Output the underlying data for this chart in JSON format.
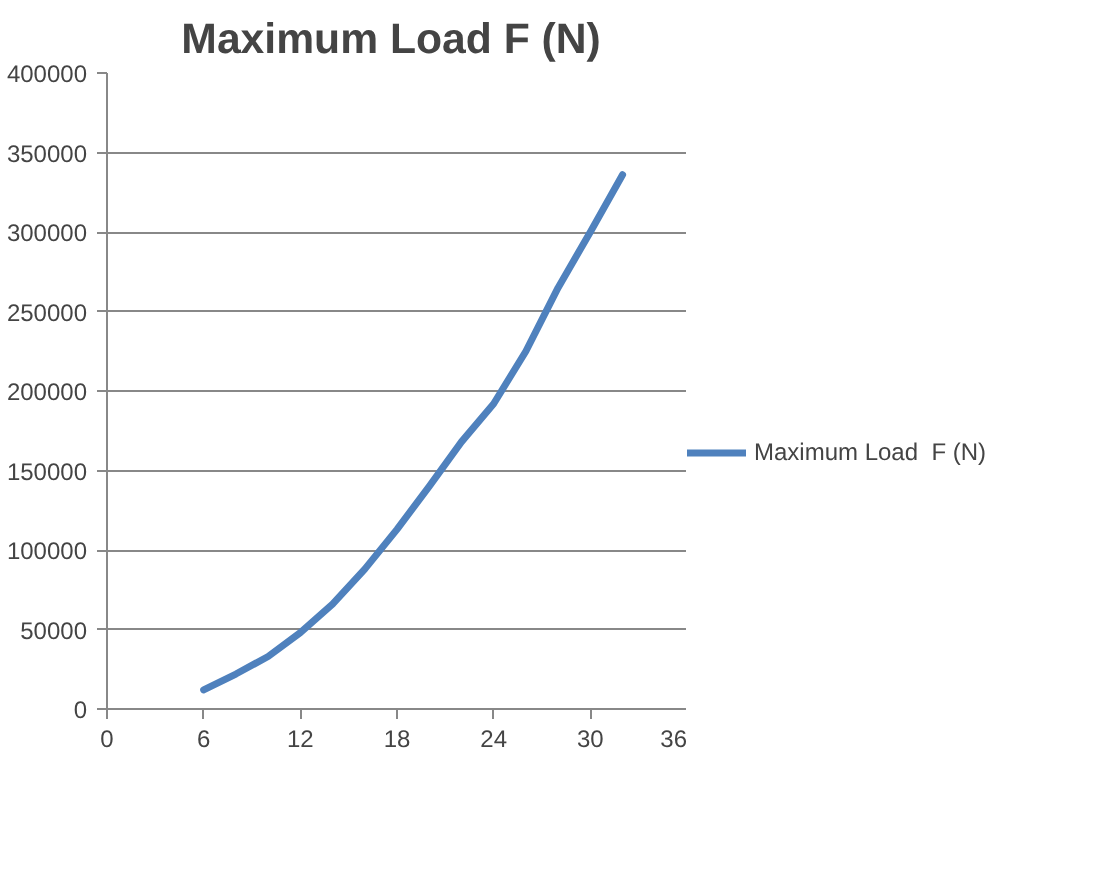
{
  "chart_data": {
    "type": "line",
    "title": "Maximum Load  F (N)",
    "x": [
      6,
      8,
      10,
      12,
      14,
      16,
      18,
      20,
      22,
      24,
      26,
      28,
      30,
      32
    ],
    "series": [
      {
        "name": "Maximum Load  F (N)",
        "color": "#4f81bd",
        "values": [
          12000,
          22000,
          33000,
          48000,
          66000,
          88000,
          113000,
          140000,
          168000,
          192000,
          225000,
          265000,
          300000,
          336000
        ]
      }
    ],
    "xlim": [
      0,
      36
    ],
    "xticks": [
      0,
      6,
      12,
      18,
      24,
      30,
      36
    ],
    "ylim": [
      0,
      400000
    ],
    "yticks": [
      0,
      50000,
      100000,
      150000,
      200000,
      250000,
      300000,
      350000,
      400000
    ],
    "grid": "y",
    "legend": "right",
    "marker": "none",
    "line_style": "solid"
  }
}
